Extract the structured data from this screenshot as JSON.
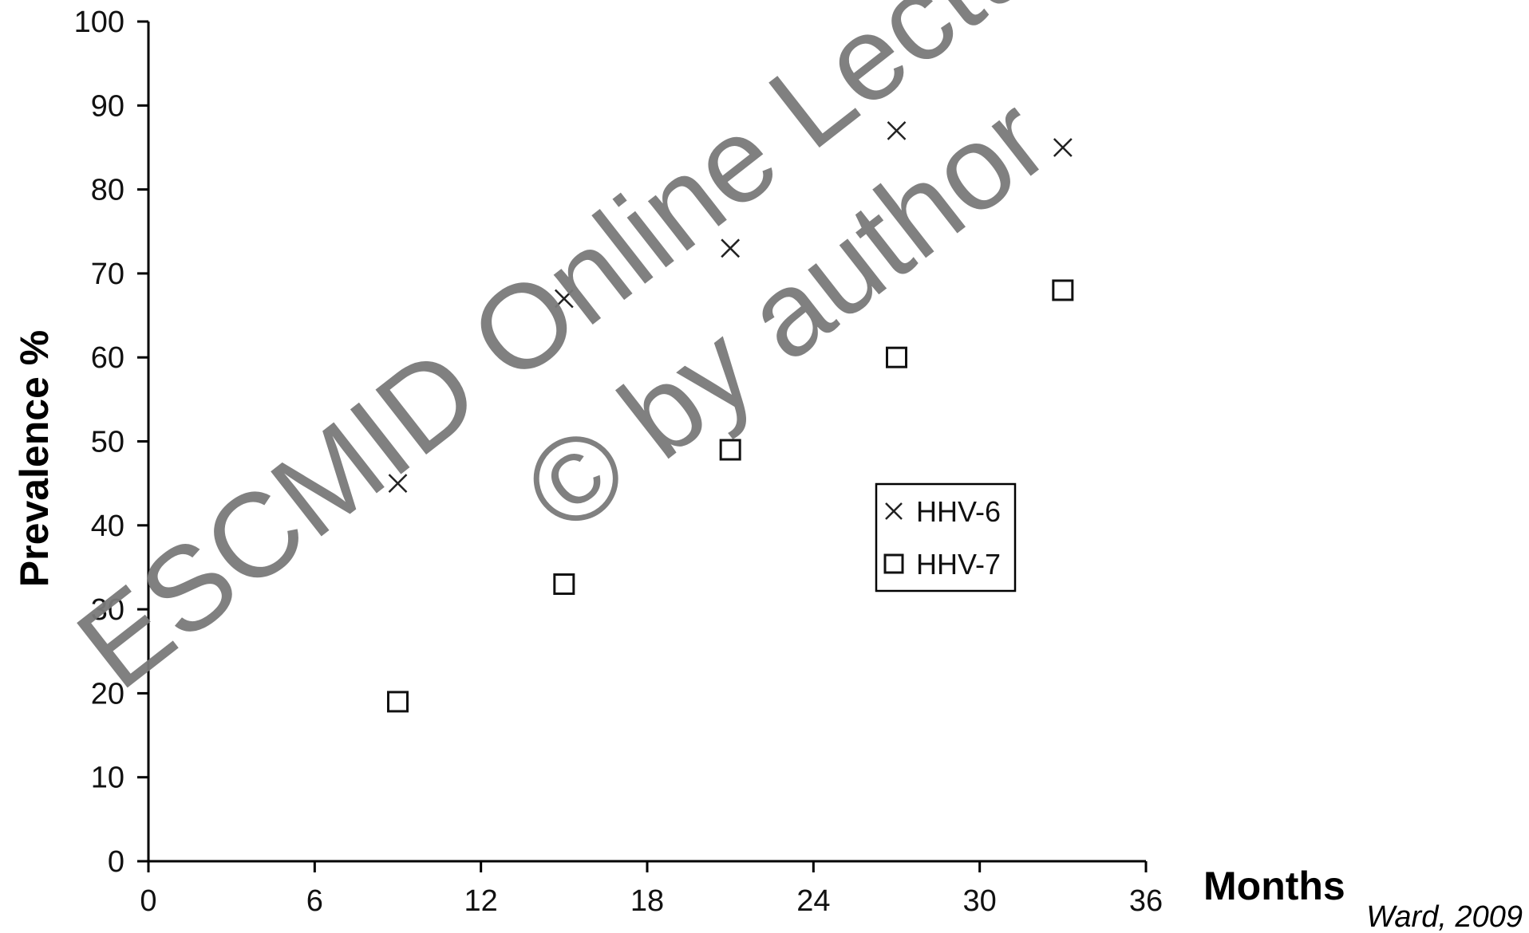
{
  "chart_data": {
    "type": "scatter",
    "title": "",
    "xlabel": "Months",
    "ylabel": "Prevalence %",
    "xlim": [
      0,
      36
    ],
    "ylim": [
      0,
      100
    ],
    "x_ticks": [
      0,
      6,
      12,
      18,
      24,
      30,
      36
    ],
    "y_ticks": [
      0,
      10,
      20,
      30,
      40,
      50,
      60,
      70,
      80,
      90,
      100
    ],
    "grid": false,
    "legend_position": "center-right",
    "series": [
      {
        "name": "HHV-6",
        "marker": "x",
        "x": [
          9,
          15,
          21,
          27,
          33
        ],
        "y": [
          45,
          67,
          73,
          87,
          85
        ]
      },
      {
        "name": "HHV-7",
        "marker": "square",
        "x": [
          9,
          15,
          21,
          27,
          33
        ],
        "y": [
          19,
          33,
          49,
          60,
          68
        ]
      }
    ]
  },
  "source_note": "Ward, 2009",
  "watermark": {
    "line1": "ESCMID Online Lecture Library",
    "line2": "© by author",
    "color": "#7a7a7a"
  }
}
